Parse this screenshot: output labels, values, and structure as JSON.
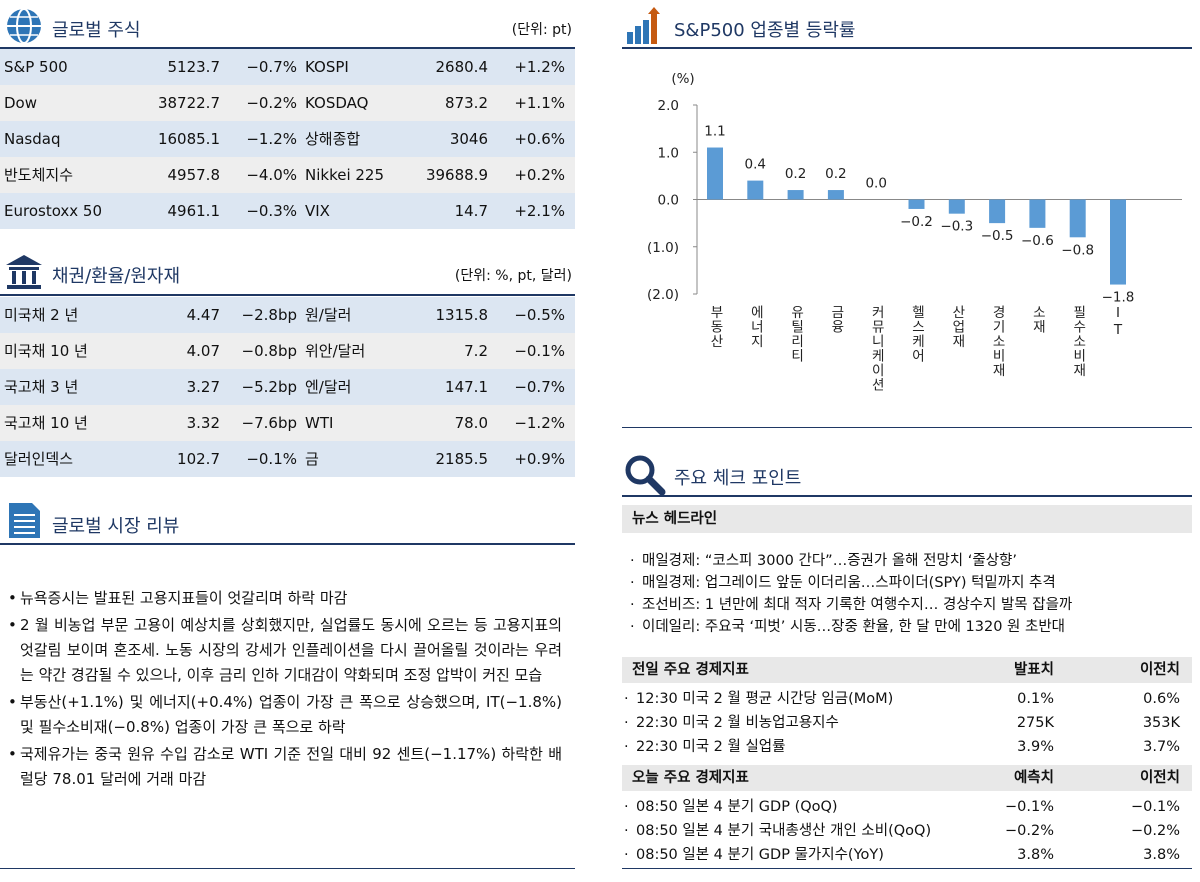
{
  "global_stocks": {
    "title": "글로벌 주식",
    "unit": "(단위: pt)",
    "rows": [
      [
        "S&P 500",
        "5123.7",
        "−0.7%",
        "KOSPI",
        "2680.4",
        "+1.2%"
      ],
      [
        "Dow",
        "38722.7",
        "−0.2%",
        "KOSDAQ",
        "873.2",
        "+1.1%"
      ],
      [
        "Nasdaq",
        "16085.1",
        "−1.2%",
        "상해종합",
        "3046",
        "+0.6%"
      ],
      [
        "반도체지수",
        "4957.8",
        "−4.0%",
        "Nikkei 225",
        "39688.9",
        "+0.2%"
      ],
      [
        "Eurostoxx 50",
        "4961.1",
        "−0.3%",
        "VIX",
        "14.7",
        "+2.1%"
      ]
    ]
  },
  "bonds_fx": {
    "title": "채권/환율/원자재",
    "unit": "(단위: %, pt, 달러)",
    "rows": [
      [
        "미국채 2 년",
        "4.47",
        "−2.8bp",
        "원/달러",
        "1315.8",
        "−0.5%"
      ],
      [
        "미국채 10 년",
        "4.07",
        "−0.8bp",
        "위안/달러",
        "7.2",
        "−0.1%"
      ],
      [
        "국고채 3 년",
        "3.27",
        "−5.2bp",
        "엔/달러",
        "147.1",
        "−0.7%"
      ],
      [
        "국고채 10 년",
        "3.32",
        "−7.6bp",
        "WTI",
        "78.0",
        "−1.2%"
      ],
      [
        "달러인덱스",
        "102.7",
        "−0.1%",
        "금",
        "2185.5",
        "+0.9%"
      ]
    ]
  },
  "review": {
    "title": "글로벌 시장 리뷰",
    "items": [
      "뉴욕증시는 발표된 고용지표들이 엇갈리며 하락 마감",
      "2 월 비농업 부문 고용이 예상치를 상회했지만, 실업률도 동시에 오르는 등 고용지표의 엇갈림 보이며 혼조세. 노동 시장의 강세가 인플레이션을 다시 끌어올릴 것이라는 우려는 약간 경감될 수 있으나, 이후 금리 인하 기대감이 약화되며 조정 압박이 커진 모습",
      "부동산(+1.1%) 및 에너지(+0.4%) 업종이 가장 큰 폭으로 상승했으며, IT(−1.8%) 및 필수소비재(−0.8%) 업종이 가장 큰 폭으로 하락",
      "국제유가는 중국 원유 수입 감소로 WTI 기준 전일 대비 92 센트(−1.17%) 하락한 배럴당 78.01 달러에 거래 마감"
    ]
  },
  "chart_data": {
    "type": "bar",
    "title": "S&P500 업종별 등락률",
    "y_label": "(%)",
    "categories": [
      "부동산",
      "에너지",
      "유틸리티",
      "금융",
      "커뮤니케이션",
      "헬스케어",
      "산업재",
      "경기소비재",
      "소재",
      "필수소비재",
      "IT"
    ],
    "values": [
      1.1,
      0.4,
      0.2,
      0.2,
      0.0,
      -0.2,
      -0.3,
      -0.5,
      -0.6,
      -0.8,
      -1.8
    ],
    "value_labels": [
      "1.1",
      "0.4",
      "0.2",
      "0.2",
      "0.0",
      "−0.2",
      "−0.3",
      "−0.5",
      "−0.6",
      "−0.8",
      "−1.8"
    ],
    "color": "#5b9bd5",
    "ylim": [
      -2,
      2
    ],
    "yticks": [
      {
        "value": 2,
        "label": "2.0"
      },
      {
        "value": 1,
        "label": "1.0"
      },
      {
        "value": 0,
        "label": "0.0"
      },
      {
        "value": -1,
        "label": "(1.0)"
      },
      {
        "value": -2,
        "label": "(2.0)"
      }
    ],
    "grid": false
  },
  "checkpoints": {
    "title": "주요 체크 포인트",
    "news": {
      "title": "뉴스 헤드라인",
      "items": [
        "매일경제: “코스피 3000 간다”…증권가 올해 전망치 ‘줄상향’",
        "매일경제: 업그레이드 앞둔 이더리움…스파이더(SPY) 턱밑까지 추격",
        "조선비즈: 1 년만에 최대 적자 기록한 여행수지… 경상수지 발목 잡을까",
        "이데일리: 주요국 ‘피벗’ 시동…장중 환율, 한 달 만에 1320 원 초반대"
      ]
    },
    "previous": {
      "header": [
        "전일 주요 경제지표",
        "발표치",
        "이전치"
      ],
      "rows": [
        [
          "12:30 미국 2 월 평균 시간당 임금(MoM)",
          "0.1%",
          "0.6%"
        ],
        [
          "22:30 미국 2 월 비농업고용지수",
          "275K",
          "353K"
        ],
        [
          "22:30 미국 2 월 실업률",
          "3.9%",
          "3.7%"
        ]
      ]
    },
    "today": {
      "header": [
        "오늘 주요 경제지표",
        "예측치",
        "이전치"
      ],
      "rows": [
        [
          "08:50 일본 4 분기 GDP (QoQ)",
          "−0.1%",
          "−0.1%"
        ],
        [
          "08:50 일본 4 분기 국내총생산 개인 소비(QoQ)",
          "−0.2%",
          "−0.2%"
        ],
        [
          "08:50 일본 4 분기 GDP 물가지수(YoY)",
          "3.8%",
          "3.8%"
        ]
      ]
    }
  }
}
